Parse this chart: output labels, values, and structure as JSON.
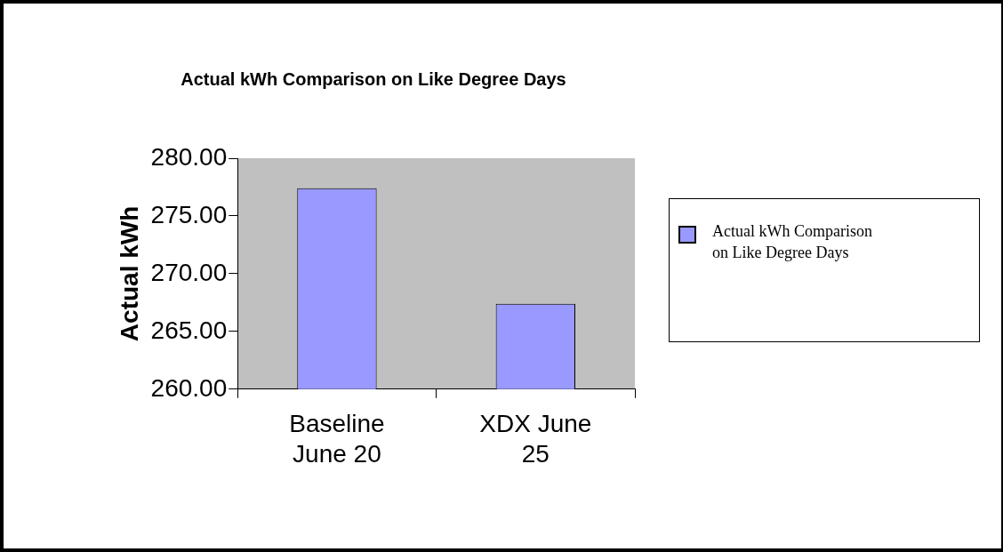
{
  "chart_data": {
    "type": "bar",
    "title": "Actual kWh Comparison on Like Degree Days",
    "ylabel": "Actual kWh",
    "categories": [
      "Baseline June 20",
      "XDX June 25"
    ],
    "series": [
      {
        "name": "Actual kWh Comparison on Like Degree Days",
        "color": "#9999ff",
        "values": [
          277.4,
          267.4
        ]
      }
    ],
    "ylim": [
      260,
      280
    ],
    "yticks": [
      {
        "value": 260,
        "label": "260.00"
      },
      {
        "value": 265,
        "label": "265.00"
      },
      {
        "value": 270,
        "label": "270.00"
      },
      {
        "value": 275,
        "label": "275.00"
      },
      {
        "value": 280,
        "label": "280.00"
      }
    ],
    "grid": false,
    "legend": "right"
  }
}
